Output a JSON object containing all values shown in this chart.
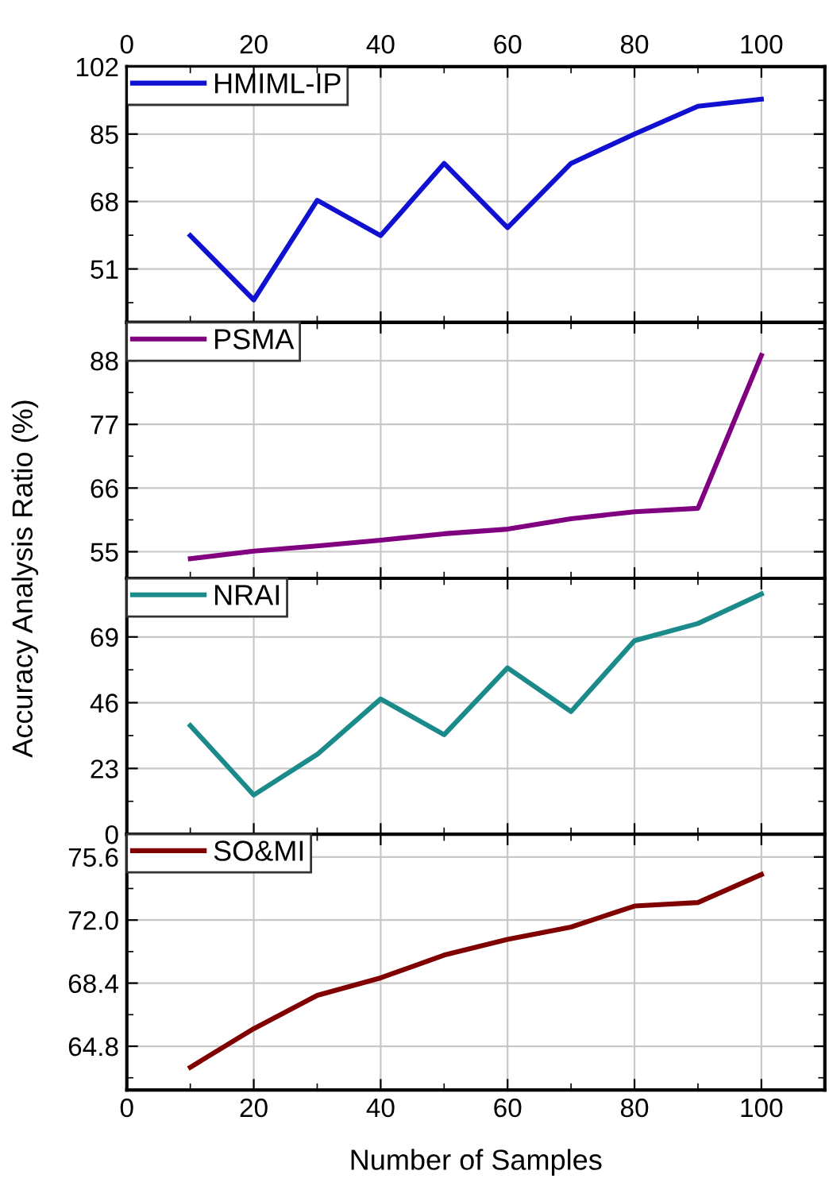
{
  "chart_data": [
    {
      "type": "line",
      "ylabel": "Accuracy Analysis Ratio (%)",
      "x": [
        10,
        20,
        30,
        40,
        50,
        60,
        70,
        80,
        90,
        100
      ],
      "xlim": [
        0,
        110
      ],
      "xticks": [
        0,
        20,
        40,
        60,
        80,
        100
      ],
      "x2lim": [
        0,
        110
      ],
      "x2ticks": [
        0,
        20,
        40,
        60,
        80,
        100
      ],
      "ylim": [
        37.5,
        102
      ],
      "yticks": [
        51,
        68,
        85,
        102
      ],
      "tick_labels": "y",
      "grid": true,
      "legend": "top left",
      "series": [
        {
          "name": "HMIML-IP",
          "color": "#1010d0",
          "values": [
            59.4,
            43.2,
            68.3,
            59.4,
            77.6,
            61.4,
            77.6,
            85,
            92,
            93.8
          ]
        }
      ]
    },
    {
      "type": "line",
      "x": [
        10,
        20,
        30,
        40,
        50,
        60,
        70,
        80,
        90,
        100
      ],
      "xlim": [
        0,
        110
      ],
      "xticks": [
        0,
        20,
        40,
        60,
        80,
        100
      ],
      "ylim": [
        50.4,
        94.6
      ],
      "yticks": [
        55,
        66,
        77,
        88
      ],
      "tick_labels": "y",
      "grid": true,
      "legend": "top left",
      "series": [
        {
          "name": "PSMA",
          "color": "#800080",
          "values": [
            53.8,
            55.1,
            56,
            57,
            58.1,
            58.9,
            60.7,
            61.9,
            62.5,
            88.9
          ]
        }
      ]
    },
    {
      "type": "line",
      "x": [
        10,
        20,
        30,
        40,
        50,
        60,
        70,
        80,
        90,
        100
      ],
      "xlim": [
        0,
        110
      ],
      "xticks": [
        0,
        20,
        40,
        60,
        80,
        100
      ],
      "ylim": [
        0,
        89.5
      ],
      "yticks": [
        0,
        23,
        46,
        69
      ],
      "tick_labels": "y",
      "grid": true,
      "legend": "top left",
      "series": [
        {
          "name": "NRAI",
          "color": "#1a8a8a",
          "values": [
            38,
            13.7,
            27.9,
            47.3,
            34.8,
            58.2,
            42.9,
            67.7,
            73.7,
            84
          ]
        }
      ]
    },
    {
      "type": "line",
      "xlabel": "Number of Samples",
      "x": [
        10,
        20,
        30,
        40,
        50,
        60,
        70,
        80,
        90,
        100
      ],
      "xlim": [
        0,
        110
      ],
      "xticks": [
        0,
        20,
        40,
        60,
        80,
        100
      ],
      "ylim": [
        62.3,
        76.9
      ],
      "yticks": [
        {
          "value": 64.8,
          "label": "64.8"
        },
        {
          "value": 68.4,
          "label": "68.4"
        },
        {
          "value": 72.0,
          "label": "72.0"
        },
        {
          "value": 75.6,
          "label": "75.6"
        }
      ],
      "grid": true,
      "legend": "top left",
      "series": [
        {
          "name": "SO&MI",
          "color": "#800000",
          "values": [
            63.6,
            65.8,
            67.7,
            68.7,
            70.0,
            70.9,
            71.6,
            72.8,
            73.0,
            74.6
          ]
        }
      ]
    }
  ]
}
